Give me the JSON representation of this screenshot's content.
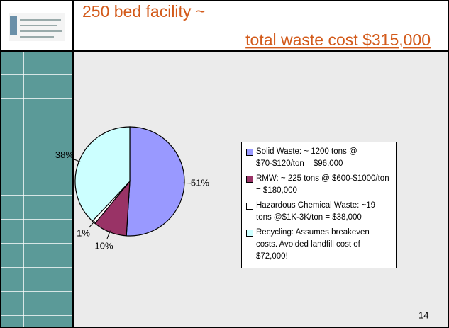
{
  "chart_data": {
    "type": "pie",
    "title": [
      "250 bed facility ~",
      "total waste cost $315,000"
    ],
    "categories": [
      "Solid Waste: ~ 1200 tons @ $70-$120/ton = $96,000",
      "RMW: ~ 225 tons @ $600-$1000/ton = $180,000",
      "Hazardous Chemical Waste: ~19 tons @$1K-3K/ton = $38,000",
      "Recycling: Assumes breakeven costs. Avoided landfill cost of $72,000!"
    ],
    "values": [
      51,
      10,
      1,
      38
    ],
    "value_labels": [
      "51%",
      "10%",
      "1%",
      "38%"
    ],
    "colors": [
      "#9999ff",
      "#993366",
      "#ffffff",
      "#ccffff"
    ],
    "legend": "right"
  },
  "slide": {
    "page_number": "14"
  }
}
